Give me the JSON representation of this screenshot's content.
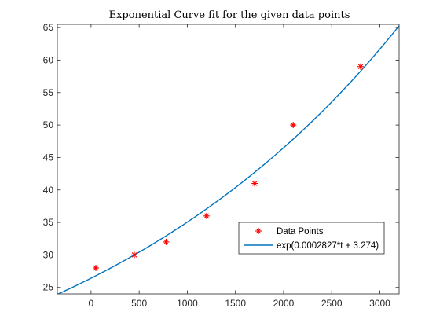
{
  "chart_data": {
    "type": "scatter",
    "title": "Exponential Curve fit for the given data points",
    "xlabel": "",
    "ylabel": "",
    "xlim": [
      -350,
      3200
    ],
    "ylim": [
      24,
      65.5
    ],
    "grid": false,
    "legend_position": "lower-right",
    "xticks": [
      0,
      500,
      1000,
      1500,
      2000,
      2500,
      3000
    ],
    "yticks": [
      25,
      30,
      35,
      40,
      45,
      50,
      55,
      60,
      65
    ],
    "series": [
      {
        "name": "Data Points",
        "kind": "scatter",
        "marker": "asterisk",
        "color": "#ff0000",
        "x": [
          50,
          450,
          780,
          1200,
          1700,
          2100,
          2800
        ],
        "y": [
          28,
          30,
          32,
          36,
          41,
          50,
          59
        ]
      },
      {
        "name": "exp(0.0002827*t + 3.274)",
        "kind": "line",
        "color": "#0072bd",
        "formula": {
          "a": 0.0002827,
          "b": 3.274
        }
      }
    ]
  }
}
